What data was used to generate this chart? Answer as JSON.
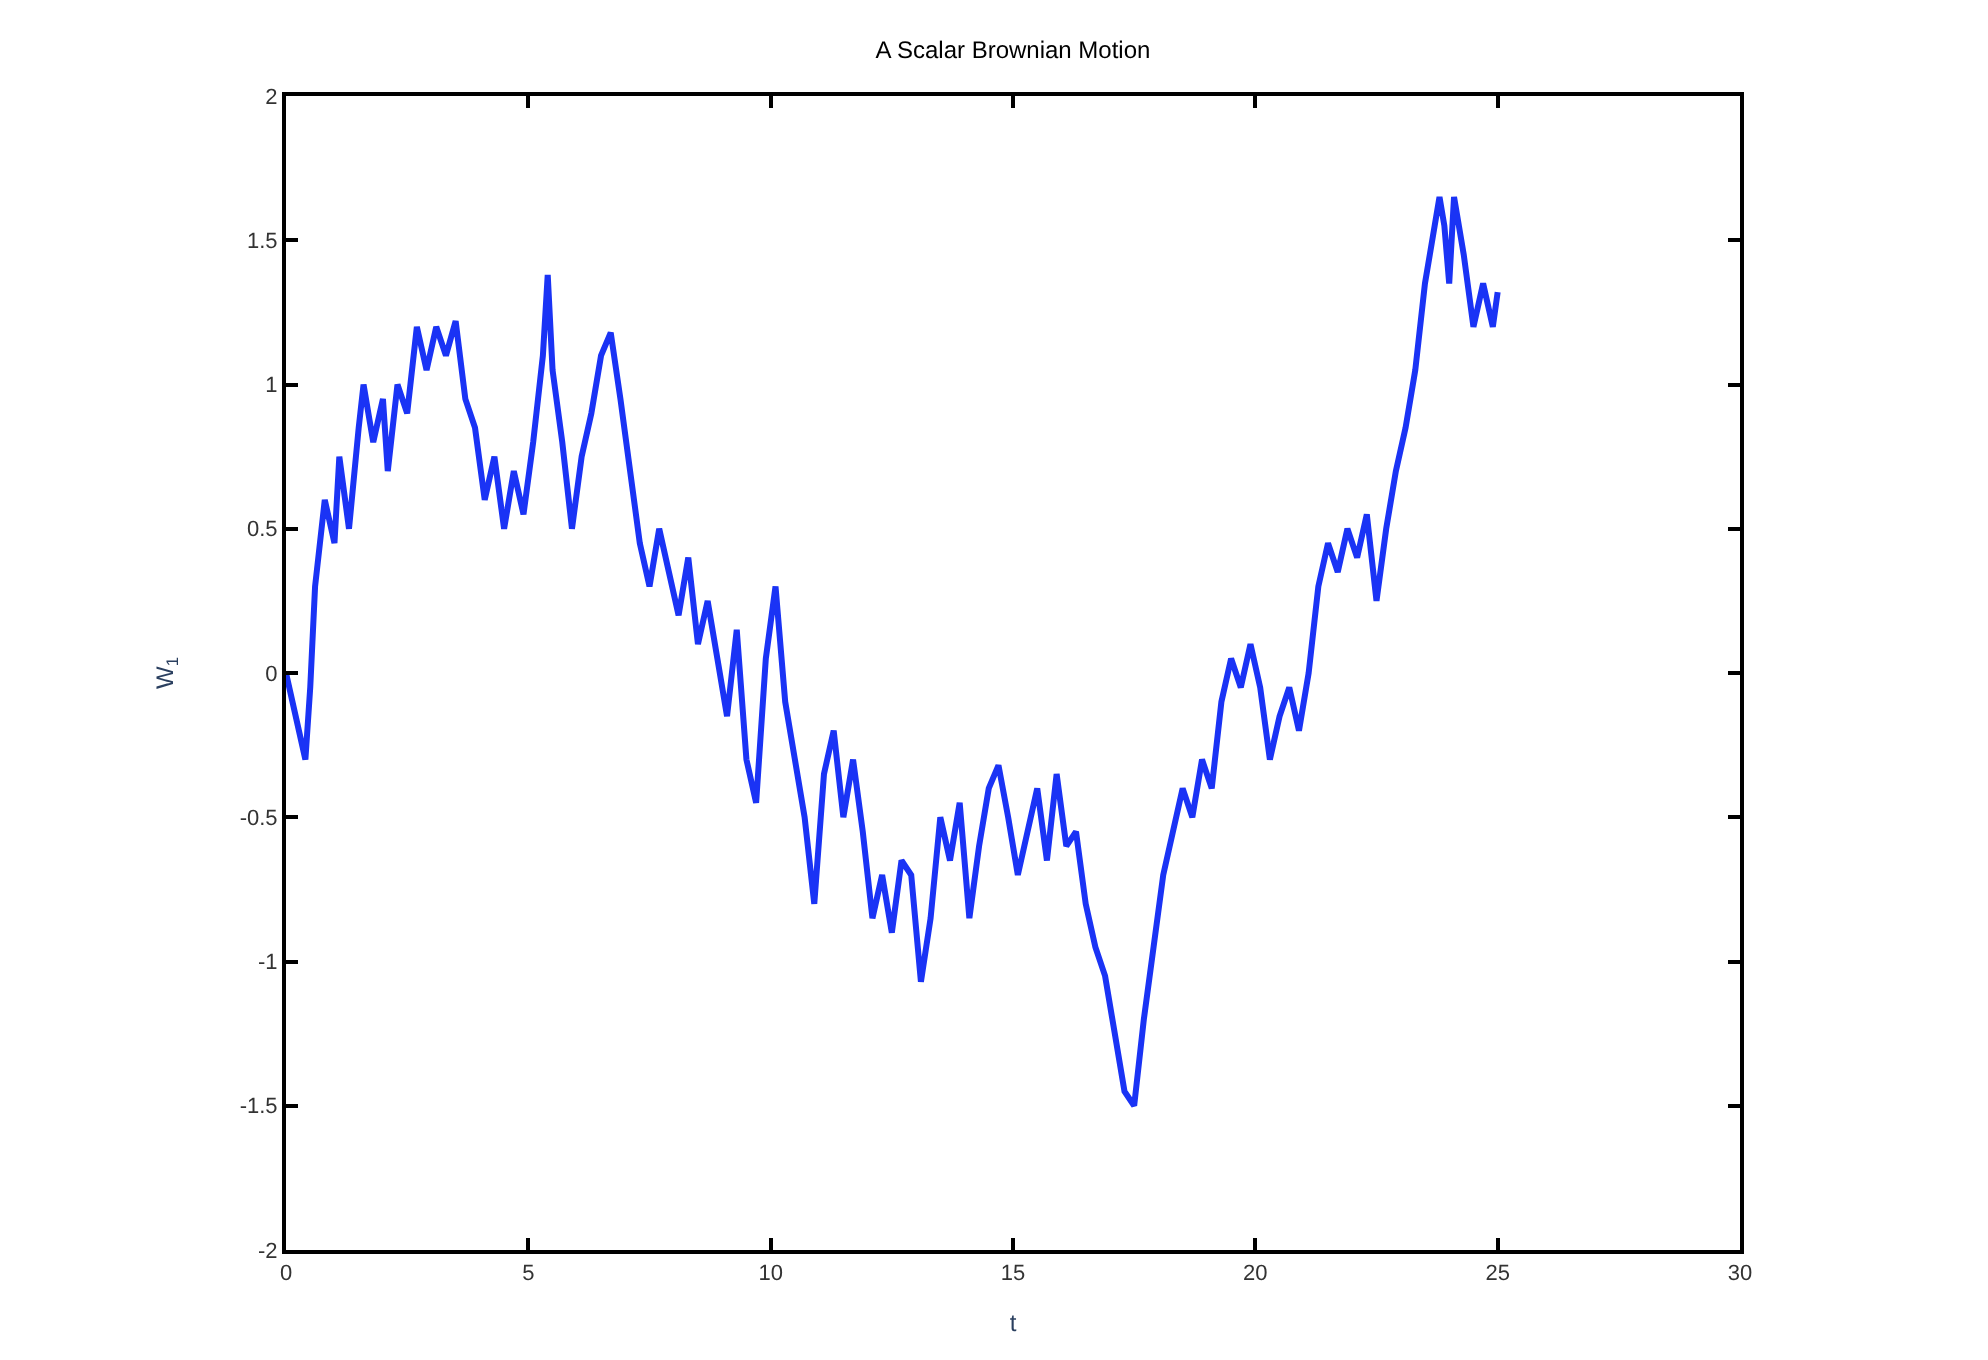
{
  "chart_data": {
    "type": "line",
    "title": "A Scalar Brownian Motion",
    "xlabel": "t",
    "ylabel": "W$_{1}$",
    "x": [
      0,
      0.2,
      0.4,
      0.5,
      0.6,
      0.8,
      1.0,
      1.1,
      1.3,
      1.5,
      1.6,
      1.8,
      2.0,
      2.1,
      2.3,
      2.5,
      2.7,
      2.9,
      3.1,
      3.3,
      3.5,
      3.7,
      3.9,
      4.1,
      4.3,
      4.5,
      4.7,
      4.9,
      5.1,
      5.3,
      5.4,
      5.5,
      5.7,
      5.9,
      6.1,
      6.3,
      6.5,
      6.7,
      6.9,
      7.1,
      7.3,
      7.5,
      7.7,
      7.9,
      8.1,
      8.3,
      8.5,
      8.7,
      8.9,
      9.1,
      9.3,
      9.5,
      9.7,
      9.9,
      10.1,
      10.3,
      10.5,
      10.7,
      10.9,
      11.1,
      11.3,
      11.5,
      11.7,
      11.9,
      12.1,
      12.3,
      12.5,
      12.7,
      12.9,
      13.1,
      13.3,
      13.5,
      13.7,
      13.9,
      14.1,
      14.3,
      14.5,
      14.7,
      14.9,
      15.1,
      15.3,
      15.5,
      15.7,
      15.9,
      16.1,
      16.3,
      16.5,
      16.7,
      16.9,
      17.1,
      17.3,
      17.5,
      17.7,
      17.9,
      18.1,
      18.3,
      18.5,
      18.7,
      18.9,
      19.1,
      19.3,
      19.5,
      19.7,
      19.9,
      20.1,
      20.3,
      20.5,
      20.7,
      20.9,
      21.1,
      21.3,
      21.5,
      21.7,
      21.9,
      22.1,
      22.3,
      22.5,
      22.7,
      22.9,
      23.1,
      23.3,
      23.5,
      23.7,
      23.8,
      23.9,
      24.0,
      24.1,
      24.3,
      24.5,
      24.7,
      24.9,
      25.0
    ],
    "series": [
      {
        "color": "#1a33f5",
        "values": [
          0,
          -0.15,
          -0.3,
          -0.05,
          0.3,
          0.6,
          0.45,
          0.75,
          0.5,
          0.85,
          1.0,
          0.8,
          0.95,
          0.7,
          1.0,
          0.9,
          1.2,
          1.05,
          1.2,
          1.1,
          1.22,
          0.95,
          0.85,
          0.6,
          0.75,
          0.5,
          0.7,
          0.55,
          0.8,
          1.1,
          1.38,
          1.05,
          0.8,
          0.5,
          0.75,
          0.9,
          1.1,
          1.18,
          0.95,
          0.7,
          0.45,
          0.3,
          0.5,
          0.35,
          0.2,
          0.4,
          0.1,
          0.25,
          0.05,
          -0.15,
          0.15,
          -0.3,
          -0.45,
          0.05,
          0.3,
          -0.1,
          -0.3,
          -0.5,
          -0.8,
          -0.35,
          -0.2,
          -0.5,
          -0.3,
          -0.55,
          -0.85,
          -0.7,
          -0.9,
          -0.65,
          -0.7,
          -1.07,
          -0.85,
          -0.5,
          -0.65,
          -0.45,
          -0.85,
          -0.6,
          -0.4,
          -0.32,
          -0.5,
          -0.7,
          -0.55,
          -0.4,
          -0.65,
          -0.35,
          -0.6,
          -0.55,
          -0.8,
          -0.95,
          -1.05,
          -1.25,
          -1.45,
          -1.5,
          -1.2,
          -0.95,
          -0.7,
          -0.55,
          -0.4,
          -0.5,
          -0.3,
          -0.4,
          -0.1,
          0.05,
          -0.05,
          0.1,
          -0.05,
          -0.3,
          -0.15,
          -0.05,
          -0.2,
          0.0,
          0.3,
          0.45,
          0.35,
          0.5,
          0.4,
          0.55,
          0.25,
          0.5,
          0.7,
          0.85,
          1.05,
          1.35,
          1.55,
          1.65,
          1.55,
          1.35,
          1.65,
          1.45,
          1.2,
          1.35,
          1.2,
          1.32
        ]
      }
    ],
    "xlim": [
      0,
      30
    ],
    "xticks": [
      0,
      5,
      10,
      15,
      20,
      25,
      30
    ],
    "ylim": [
      -2,
      2
    ],
    "yticks": [
      -2,
      -1.5,
      -1,
      -0.5,
      0,
      0.5,
      1,
      1.5,
      2
    ],
    "marker": "none",
    "line_style": "solid"
  }
}
